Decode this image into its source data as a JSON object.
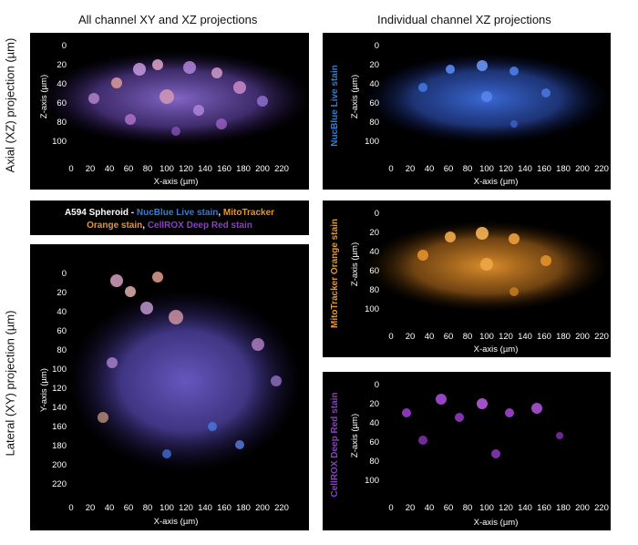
{
  "headers": {
    "left": "All channel XY and XZ projections",
    "right": "Individual channel XZ projections"
  },
  "row_labels": {
    "axial": "Axial (XZ) projection  (µm)",
    "lateral": "Lateral (XY) projection  (µm)"
  },
  "axes": {
    "x_label": "X-axis (µm)",
    "z_label": "Z-axis (µm)",
    "y_label": "Y-axis (µm)",
    "x_ticks": [
      "0",
      "20",
      "40",
      "60",
      "80",
      "100",
      "120",
      "140",
      "160",
      "180",
      "200",
      "220"
    ],
    "z_ticks": [
      "0",
      "20",
      "40",
      "60",
      "80",
      "100"
    ],
    "y_ticks": [
      "0",
      "20",
      "40",
      "60",
      "80",
      "100",
      "120",
      "140",
      "160",
      "180",
      "200",
      "220"
    ]
  },
  "channels": {
    "nucblue": {
      "label": "NucBlue Live stain",
      "color": "#2f7fd8"
    },
    "mitotracker": {
      "label": "MitoTracker Orange stain",
      "color": "#e8952c"
    },
    "cellrox": {
      "label": "CellROX Deep Red stain",
      "color": "#8a3fc9"
    }
  },
  "legend": {
    "prefix": "A594 Spheroid - ",
    "nucblue": "NucBlue Live stain",
    "sep1": ", ",
    "mito_line1": "MitoTracker",
    "mito_line2": "Orange stain",
    "sep2": ", ",
    "cellrox": "CellROX Deep Red stain"
  }
}
